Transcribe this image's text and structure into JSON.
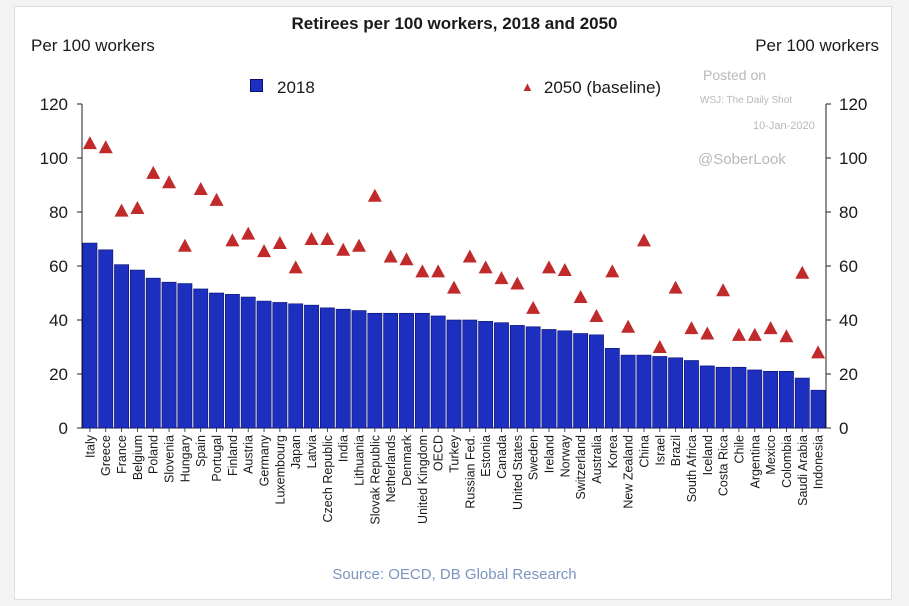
{
  "title": "Retirees per 100 workers, 2018 and 2050",
  "left_axis_label": "Per 100 workers",
  "right_axis_label": "Per 100 workers",
  "source": "Source: OECD, DB Global Research",
  "watermark": {
    "posted_on": "Posted on",
    "outlet": "WSJ: The Daily Shot",
    "date": "10-Jan-2020",
    "handle": "@SoberLook"
  },
  "colors": {
    "bar": "#1c2fbf",
    "bar_edge": "#0a0f70",
    "marker": "#c02a2a"
  },
  "chart_data": {
    "type": "bar",
    "title": "Retirees per 100 workers, 2018 and 2050",
    "ylabel": "Per 100 workers",
    "ylim": [
      0,
      120
    ],
    "yticks": [
      0,
      20,
      40,
      60,
      80,
      100,
      120
    ],
    "legend": "top",
    "categories": [
      "Italy",
      "Greece",
      "France",
      "Belgium",
      "Poland",
      "Slovenia",
      "Hungary",
      "Spain",
      "Portugal",
      "Finland",
      "Austria",
      "Germany",
      "Luxembourg",
      "Japan",
      "Latvia",
      "Czech Republic",
      "India",
      "Lithuania",
      "Slovak Republic",
      "Netherlands",
      "Denmark",
      "United Kingdom",
      "OECD",
      "Turkey",
      "Russian Fed.",
      "Estonia",
      "Canada",
      "United States",
      "Sweden",
      "Ireland",
      "Norway",
      "Switzerland",
      "Australia",
      "Korea",
      "New Zealand",
      "China",
      "Israel",
      "Brazil",
      "South Africa",
      "Iceland",
      "Costa Rica",
      "Chile",
      "Argentina",
      "Mexico",
      "Colombia",
      "Saudi Arabia",
      "Indonesia"
    ],
    "series": [
      {
        "name": "2018",
        "kind": "bar",
        "values": [
          68.5,
          66,
          60.5,
          58.5,
          55.5,
          54,
          53.5,
          51.5,
          50,
          49.5,
          48.5,
          47,
          46.5,
          46,
          45.5,
          44.5,
          44,
          43.5,
          42.5,
          42.5,
          42.5,
          42.5,
          41.5,
          40,
          40,
          39.5,
          39,
          38,
          37.5,
          36.5,
          36,
          35,
          34.5,
          29.5,
          27,
          27,
          26.5,
          26,
          25,
          23,
          22.5,
          22.5,
          21.5,
          21,
          21,
          18.5,
          14
        ]
      },
      {
        "name": "2050 (baseline)",
        "kind": "marker",
        "values": [
          105.5,
          104,
          80.5,
          81.5,
          94.5,
          91,
          67.5,
          88.5,
          84.5,
          69.5,
          72,
          65.5,
          68.5,
          59.5,
          70,
          70,
          66,
          67.5,
          86,
          63.5,
          62.5,
          58,
          58,
          52,
          63.5,
          59.5,
          55.5,
          53.5,
          44.5,
          59.5,
          58.5,
          48.5,
          41.5,
          58,
          37.5,
          69.5,
          30,
          52,
          37,
          35,
          51,
          34.5,
          34.5,
          37,
          34,
          57.5,
          28
        ]
      }
    ]
  }
}
